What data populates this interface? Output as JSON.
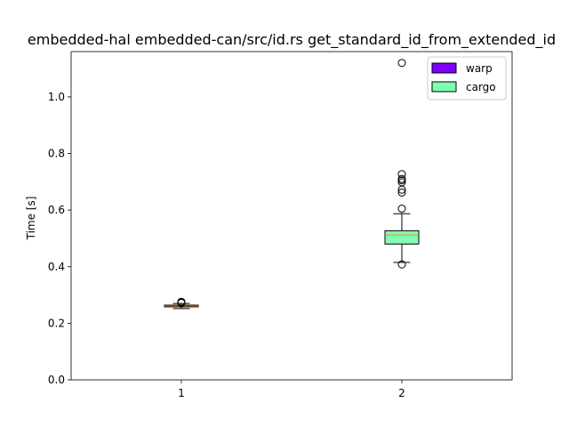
{
  "chart_data": {
    "type": "box",
    "title": "embedded-hal embedded-can/src/id.rs get_standard_id_from_extended_id",
    "xlabel": "",
    "ylabel": "Time [s]",
    "ylim": [
      0.0,
      1.16
    ],
    "xlim": [
      0.5,
      2.5
    ],
    "yticks": [
      0.0,
      0.2,
      0.4,
      0.6,
      0.8,
      1.0
    ],
    "yticklabels": [
      "0.0",
      "0.2",
      "0.4",
      "0.6",
      "0.8",
      "1.0"
    ],
    "xticks": [
      1,
      2
    ],
    "xticklabels": [
      "1",
      "2"
    ],
    "grid": false,
    "legend_position": "upper right",
    "series": [
      {
        "name": "warp",
        "x": 1,
        "color": "#8000ff",
        "whisker_low": 0.252,
        "q1": 0.258,
        "median": 0.261,
        "q3": 0.264,
        "whisker_high": 0.27,
        "outliers": [
          0.274,
          0.276,
          0.272
        ]
      },
      {
        "name": "cargo",
        "x": 2,
        "color": "#80ffb4",
        "whisker_low": 0.415,
        "q1": 0.48,
        "median": 0.512,
        "q3": 0.527,
        "whisker_high": 0.587,
        "outliers": [
          1.12,
          0.727,
          0.71,
          0.705,
          0.698,
          0.672,
          0.662,
          0.605,
          0.408
        ]
      }
    ],
    "median_color": "#ff7f0e"
  }
}
